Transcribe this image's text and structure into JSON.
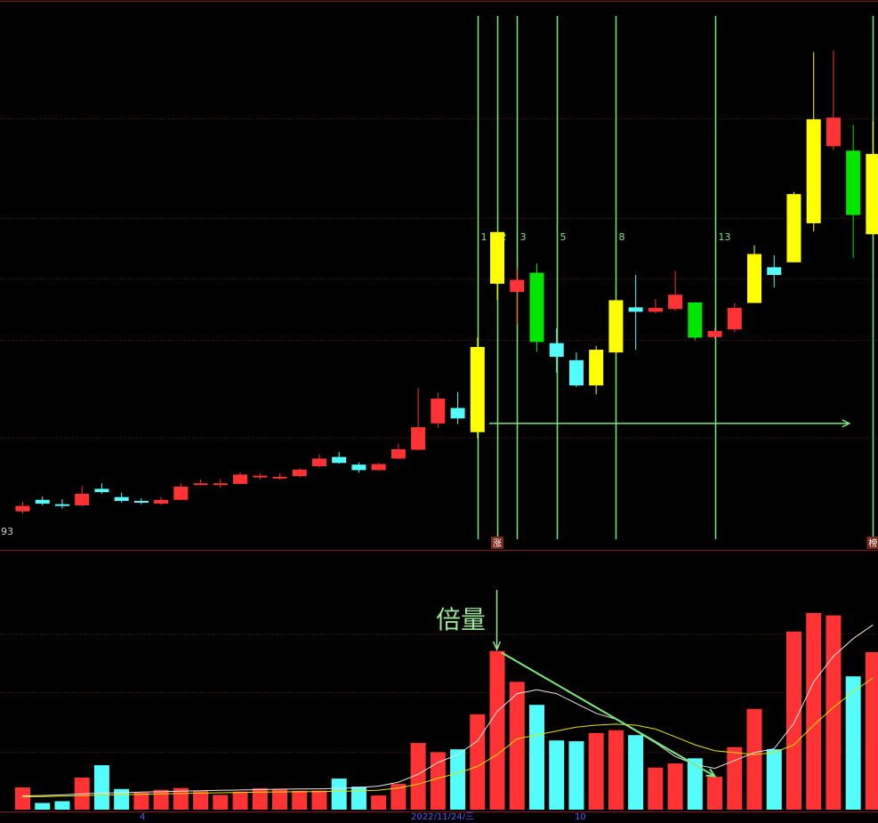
{
  "chart_data": [
    {
      "type": "candlestick",
      "title": "",
      "ylabel": "",
      "ylim": [
        0,
        100
      ],
      "price_low_label": "93",
      "candles": [
        {
          "o": 7.0,
          "c": 8.0,
          "h": 8.7,
          "l": 6.6,
          "color": "red"
        },
        {
          "o": 9.1,
          "c": 8.4,
          "h": 9.7,
          "l": 8.1,
          "color": "cyan"
        },
        {
          "o": 8.3,
          "c": 8.1,
          "h": 9.2,
          "l": 7.5,
          "color": "cyan"
        },
        {
          "o": 8.1,
          "c": 10.2,
          "h": 11.6,
          "l": 7.9,
          "color": "red"
        },
        {
          "o": 11.1,
          "c": 10.5,
          "h": 12.1,
          "l": 10.2,
          "color": "cyan"
        },
        {
          "o": 9.6,
          "c": 8.9,
          "h": 10.4,
          "l": 8.6,
          "color": "cyan"
        },
        {
          "o": 8.9,
          "c": 8.6,
          "h": 9.4,
          "l": 8.3,
          "color": "cyan"
        },
        {
          "o": 8.4,
          "c": 9.1,
          "h": 9.6,
          "l": 8.2,
          "color": "red"
        },
        {
          "o": 9.1,
          "c": 11.5,
          "h": 12.1,
          "l": 9.0,
          "color": "red"
        },
        {
          "o": 11.9,
          "c": 12.1,
          "h": 12.8,
          "l": 11.8,
          "color": "red"
        },
        {
          "o": 11.8,
          "c": 12.1,
          "h": 12.9,
          "l": 11.3,
          "color": "red"
        },
        {
          "o": 12.0,
          "c": 13.7,
          "h": 14.1,
          "l": 11.9,
          "color": "red"
        },
        {
          "o": 13.5,
          "c": 13.3,
          "h": 13.9,
          "l": 12.8,
          "color": "red"
        },
        {
          "o": 13.3,
          "c": 13.1,
          "h": 13.9,
          "l": 12.8,
          "color": "red"
        },
        {
          "o": 13.4,
          "c": 14.6,
          "h": 14.8,
          "l": 13.2,
          "color": "red"
        },
        {
          "o": 15.2,
          "c": 16.6,
          "h": 17.4,
          "l": 15.0,
          "color": "red"
        },
        {
          "o": 16.9,
          "c": 15.8,
          "h": 17.8,
          "l": 15.7,
          "color": "cyan"
        },
        {
          "o": 15.5,
          "c": 14.5,
          "h": 15.9,
          "l": 14.0,
          "color": "cyan"
        },
        {
          "o": 14.5,
          "c": 15.6,
          "h": 15.8,
          "l": 14.4,
          "color": "red"
        },
        {
          "o": 16.6,
          "c": 18.3,
          "h": 19.3,
          "l": 16.5,
          "color": "red"
        },
        {
          "o": 18.2,
          "c": 22.3,
          "h": 29.4,
          "l": 18.1,
          "color": "red"
        },
        {
          "o": 23.0,
          "c": 27.5,
          "h": 28.6,
          "l": 22.2,
          "color": "red"
        },
        {
          "o": 25.8,
          "c": 23.9,
          "h": 28.7,
          "l": 22.9,
          "color": "cyan"
        },
        {
          "o": 21.4,
          "c": 36.9,
          "h": 38.6,
          "l": 20.3,
          "color": "yellow"
        },
        {
          "o": 48.4,
          "c": 57.8,
          "h": 57.8,
          "l": 45.4,
          "color": "yellow"
        },
        {
          "o": 49.1,
          "c": 46.9,
          "h": 51.2,
          "l": 41.0,
          "color": "red"
        },
        {
          "o": 50.4,
          "c": 37.8,
          "h": 52.1,
          "l": 36.0,
          "color": "green"
        },
        {
          "o": 37.6,
          "c": 35.1,
          "h": 40.3,
          "l": 32.2,
          "color": "cyan"
        },
        {
          "o": 34.5,
          "c": 29.9,
          "h": 35.9,
          "l": 29.6,
          "color": "cyan"
        },
        {
          "o": 29.9,
          "c": 36.4,
          "h": 37.1,
          "l": 28.3,
          "color": "yellow"
        },
        {
          "o": 35.9,
          "c": 45.4,
          "h": 45.4,
          "l": 35.9,
          "color": "yellow"
        },
        {
          "o": 44.1,
          "c": 43.3,
          "h": 50.0,
          "l": 36.4,
          "color": "cyan"
        },
        {
          "o": 43.3,
          "c": 44.0,
          "h": 45.6,
          "l": 43.0,
          "color": "red"
        },
        {
          "o": 43.8,
          "c": 46.4,
          "h": 50.7,
          "l": 43.5,
          "color": "red"
        },
        {
          "o": 45.0,
          "c": 38.6,
          "h": 45.1,
          "l": 38.1,
          "color": "green"
        },
        {
          "o": 38.7,
          "c": 39.8,
          "h": 40.4,
          "l": 38.4,
          "color": "red"
        },
        {
          "o": 40.1,
          "c": 44.0,
          "h": 44.9,
          "l": 39.6,
          "color": "red"
        },
        {
          "o": 44.9,
          "c": 53.8,
          "h": 55.4,
          "l": 44.9,
          "color": "yellow"
        },
        {
          "o": 51.4,
          "c": 50.0,
          "h": 53.6,
          "l": 47.7,
          "color": "cyan"
        },
        {
          "o": 52.3,
          "c": 64.7,
          "h": 65.1,
          "l": 52.3,
          "color": "yellow"
        },
        {
          "o": 59.4,
          "c": 78.3,
          "h": 90.5,
          "l": 57.9,
          "color": "yellow"
        },
        {
          "o": 78.6,
          "c": 73.4,
          "h": 90.8,
          "l": 72.7,
          "color": "red"
        },
        {
          "o": 72.6,
          "c": 60.9,
          "h": 77.3,
          "l": 53.1,
          "color": "green"
        },
        {
          "o": 72.0,
          "c": 57.4,
          "h": 78.0,
          "l": 57.4,
          "color": "yellow"
        }
      ],
      "markers": [
        {
          "index": 23,
          "label": "1"
        },
        {
          "index": 24,
          "label": "2"
        },
        {
          "index": 25,
          "label": "3"
        },
        {
          "index": 27,
          "label": "5"
        },
        {
          "index": 30,
          "label": "8"
        },
        {
          "index": 35,
          "label": "13"
        },
        {
          "index": 43,
          "label": ""
        }
      ],
      "support_arrow": {
        "from_index": 23.6,
        "to_index": 41.8,
        "y": 23.0
      },
      "bottom_badges": [
        {
          "index": 24,
          "label": "涨"
        },
        {
          "index": 43,
          "label": "榜"
        }
      ]
    },
    {
      "type": "bar",
      "title": "",
      "ylabel": "",
      "ylim": [
        0,
        100
      ],
      "annotation": "倍量",
      "volumes": [
        {
          "v": 11.3,
          "color": "red"
        },
        {
          "v": 3.4,
          "color": "cyan"
        },
        {
          "v": 4.3,
          "color": "cyan"
        },
        {
          "v": 16.3,
          "color": "red"
        },
        {
          "v": 22.6,
          "color": "cyan"
        },
        {
          "v": 10.5,
          "color": "cyan"
        },
        {
          "v": 8.6,
          "color": "red"
        },
        {
          "v": 10.1,
          "color": "red"
        },
        {
          "v": 11.0,
          "color": "red"
        },
        {
          "v": 9.4,
          "color": "red"
        },
        {
          "v": 7.5,
          "color": "red"
        },
        {
          "v": 9.2,
          "color": "red"
        },
        {
          "v": 10.9,
          "color": "red"
        },
        {
          "v": 10.6,
          "color": "red"
        },
        {
          "v": 9.6,
          "color": "red"
        },
        {
          "v": 9.7,
          "color": "red"
        },
        {
          "v": 15.8,
          "color": "cyan"
        },
        {
          "v": 11.7,
          "color": "cyan"
        },
        {
          "v": 7.2,
          "color": "red"
        },
        {
          "v": 13.1,
          "color": "red"
        },
        {
          "v": 33.9,
          "color": "red"
        },
        {
          "v": 29.2,
          "color": "red"
        },
        {
          "v": 30.7,
          "color": "cyan"
        },
        {
          "v": 48.5,
          "color": "red"
        },
        {
          "v": 80.7,
          "color": "red"
        },
        {
          "v": 65.0,
          "color": "red"
        },
        {
          "v": 53.3,
          "color": "cyan"
        },
        {
          "v": 35.2,
          "color": "cyan"
        },
        {
          "v": 34.8,
          "color": "cyan"
        },
        {
          "v": 39.0,
          "color": "red"
        },
        {
          "v": 40.4,
          "color": "red"
        },
        {
          "v": 37.9,
          "color": "cyan"
        },
        {
          "v": 21.4,
          "color": "red"
        },
        {
          "v": 23.5,
          "color": "red"
        },
        {
          "v": 26.1,
          "color": "cyan"
        },
        {
          "v": 16.7,
          "color": "red"
        },
        {
          "v": 31.8,
          "color": "red"
        },
        {
          "v": 51.2,
          "color": "red"
        },
        {
          "v": 30.7,
          "color": "cyan"
        },
        {
          "v": 90.6,
          "color": "red"
        },
        {
          "v": 100.0,
          "color": "red"
        },
        {
          "v": 98.8,
          "color": "red"
        },
        {
          "v": 67.8,
          "color": "cyan"
        },
        {
          "v": 80.1,
          "color": "red"
        }
      ],
      "ma_white": [
        7.0,
        7.2,
        7.5,
        8.0,
        8.4,
        8.6,
        8.9,
        9.1,
        9.4,
        9.6,
        9.8,
        10.0,
        10.2,
        10.4,
        10.5,
        10.6,
        10.8,
        11.2,
        12.0,
        14.0,
        18.0,
        24.0,
        28.0,
        35.0,
        50.0,
        59.0,
        61.0,
        59.0,
        54.0,
        49.0,
        46.0,
        40.0,
        34.0,
        27.0,
        23.0,
        21.0,
        25.0,
        29.0,
        31.0,
        44.0,
        65.0,
        78.0,
        87.0,
        94.0
      ],
      "ma_yellow": [
        6.5,
        6.7,
        6.9,
        7.1,
        7.4,
        7.6,
        7.8,
        8.0,
        8.2,
        8.4,
        8.6,
        8.8,
        8.9,
        9.0,
        9.1,
        9.2,
        9.3,
        9.5,
        9.9,
        11.0,
        13.0,
        16.0,
        18.5,
        22.0,
        28.0,
        36.0,
        38.0,
        40.0,
        42.0,
        43.0,
        43.5,
        43.0,
        41.0,
        37.0,
        33.0,
        30.0,
        29.0,
        28.0,
        29.0,
        33.0,
        43.0,
        52.0,
        60.0,
        67.0
      ],
      "trend_arrow": {
        "from_index": 24.2,
        "from_v": 80.0,
        "to_index": 35.0,
        "to_v": 17.0
      }
    }
  ],
  "axis_strip": {
    "labels": [
      "4",
      "2022/11/24/三",
      "10"
    ]
  },
  "colors": {
    "background": "#000000",
    "border": "#8a1a1a",
    "grid": "#5a1818",
    "red": "#ff3333",
    "cyan": "#54fcfc",
    "yellow": "#ffff00",
    "green": "#00e600",
    "marker_line": "#7ee87e",
    "annotation": "#9ae89a",
    "ma_white": "#e6e6e6",
    "ma_yellow": "#e6e600",
    "axis_label": "#5a5aff"
  }
}
